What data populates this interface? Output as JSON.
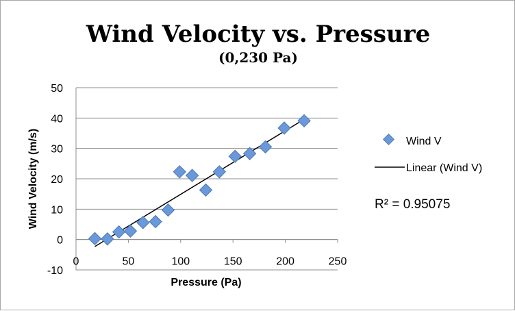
{
  "chart_data": {
    "type": "scatter",
    "title": "Wind Velocity vs. Pressure",
    "subtitle": "(0,230 Pa)",
    "xlabel": "Pressure (Pa)",
    "ylabel": "Wind Velocity (m/s)",
    "xlim": [
      0,
      250
    ],
    "ylim": [
      -10,
      50
    ],
    "xticks": [
      0,
      50,
      100,
      150,
      200,
      250
    ],
    "yticks": [
      -10,
      0,
      10,
      20,
      30,
      40,
      50
    ],
    "grid": "horizontal",
    "legend_position": "right",
    "series": [
      {
        "name": "Wind V",
        "marker": "diamond",
        "color": "#6a98d8",
        "points": [
          [
            18,
            0.3
          ],
          [
            30,
            0.2
          ],
          [
            41,
            2.5
          ],
          [
            52,
            2.8
          ],
          [
            64,
            5.6
          ],
          [
            76,
            5.9
          ],
          [
            88,
            9.7
          ],
          [
            99,
            22.3
          ],
          [
            111,
            21.1
          ],
          [
            124,
            16.3
          ],
          [
            137,
            22.3
          ],
          [
            152,
            27.4
          ],
          [
            166,
            28.3
          ],
          [
            181,
            30.5
          ],
          [
            199,
            36.7
          ],
          [
            218,
            39.1
          ]
        ]
      }
    ],
    "trendline": {
      "label": "Linear (Wind V)",
      "type": "linear",
      "color": "#000000",
      "from": [
        18,
        -2.3
      ],
      "to": [
        218,
        39.6
      ]
    },
    "annotation": "R² = 0.95075"
  }
}
